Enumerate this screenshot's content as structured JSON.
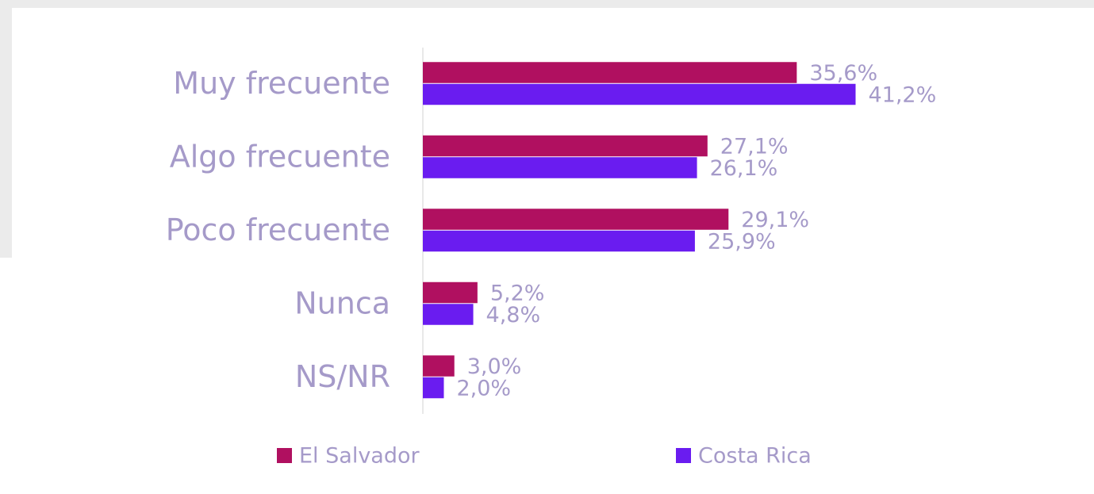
{
  "chart_data": {
    "type": "bar",
    "orientation": "horizontal",
    "categories": [
      "Muy frecuente",
      "Algo frecuente",
      "Poco frecuente",
      "Nunca",
      "NS/NR"
    ],
    "series": [
      {
        "name": "El Salvador",
        "color": "#b01060",
        "values": [
          35.6,
          27.1,
          29.1,
          5.2,
          3.0
        ],
        "value_labels": [
          "35,6%",
          "27,1%",
          "29,1%",
          "5,2%",
          "3,0%"
        ]
      },
      {
        "name": "Costa Rica",
        "color": "#6a1cf0",
        "values": [
          41.2,
          26.1,
          25.9,
          4.8,
          2.0
        ],
        "value_labels": [
          "41,2%",
          "26,1%",
          "25,9%",
          "4,8%",
          "2,0%"
        ]
      }
    ],
    "xlim": [
      0,
      50
    ],
    "legend": "bottom"
  }
}
